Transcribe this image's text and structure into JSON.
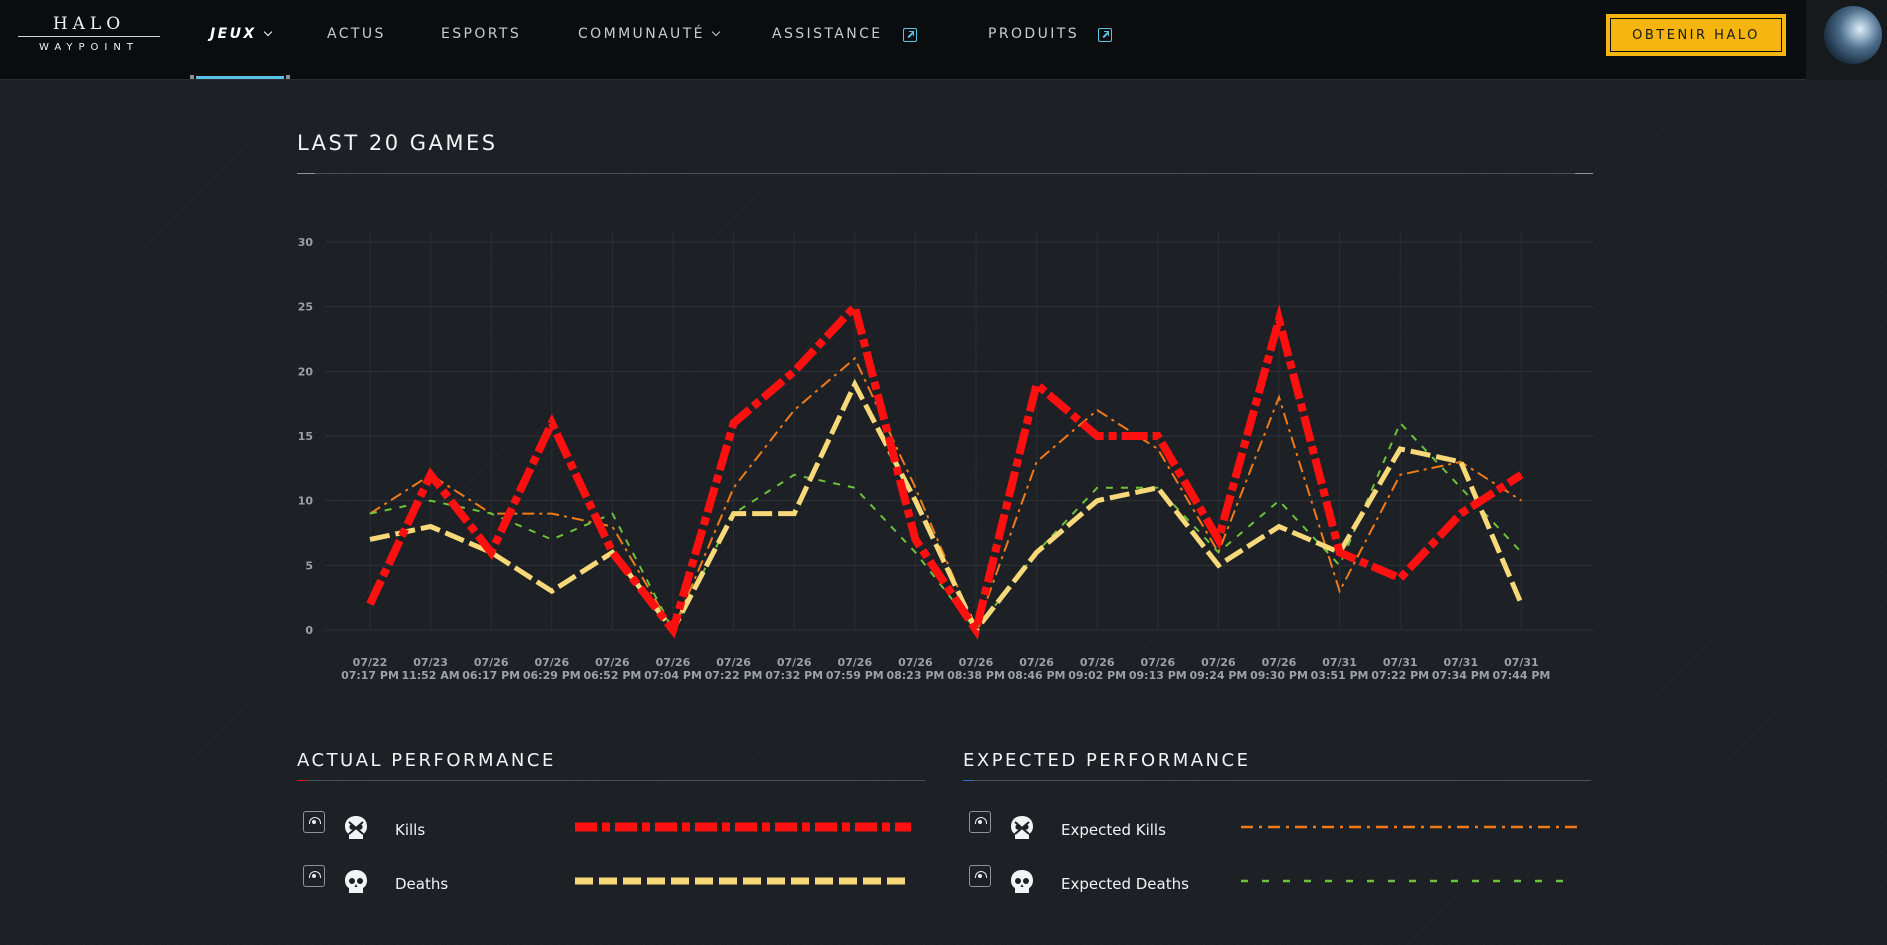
{
  "nav": {
    "logo_top": "HALO",
    "logo_bottom": "WAYPOINT",
    "items": [
      {
        "label": "JEUX",
        "dropdown": true,
        "active": true
      },
      {
        "label": "ACTUS"
      },
      {
        "label": "ESPORTS"
      },
      {
        "label": "COMMUNAUTÉ",
        "dropdown": true
      },
      {
        "label": "ASSISTANCE",
        "external": true
      },
      {
        "label": "PRODUITS",
        "external": true
      }
    ],
    "cta_label": "OBTENIR HALO",
    "accent": "#5bc2e7",
    "cta_color": "#f5b50e"
  },
  "main": {
    "chart_title": "LAST 20 GAMES"
  },
  "chart_data": {
    "type": "line",
    "title": "LAST 20 GAMES",
    "xlabel": "",
    "ylabel": "",
    "ylim": [
      0,
      30
    ],
    "yticks": [
      0,
      5,
      10,
      15,
      20,
      25,
      30
    ],
    "grid": true,
    "legend_placement": "bottom",
    "x": [
      [
        "07/22",
        "07:17 PM"
      ],
      [
        "07/23",
        "11:52 AM"
      ],
      [
        "07/26",
        "06:17 PM"
      ],
      [
        "07/26",
        "06:29 PM"
      ],
      [
        "07/26",
        "06:52 PM"
      ],
      [
        "07/26",
        "07:04 PM"
      ],
      [
        "07/26",
        "07:22 PM"
      ],
      [
        "07/26",
        "07:32 PM"
      ],
      [
        "07/26",
        "07:59 PM"
      ],
      [
        "07/26",
        "08:23 PM"
      ],
      [
        "07/26",
        "08:38 PM"
      ],
      [
        "07/26",
        "08:46 PM"
      ],
      [
        "07/26",
        "09:02 PM"
      ],
      [
        "07/26",
        "09:13 PM"
      ],
      [
        "07/26",
        "09:24 PM"
      ],
      [
        "07/26",
        "09:30 PM"
      ],
      [
        "07/31",
        "03:51 PM"
      ],
      [
        "07/31",
        "07:22 PM"
      ],
      [
        "07/31",
        "07:34 PM"
      ],
      [
        "07/31",
        "07:44 PM"
      ]
    ],
    "series": [
      {
        "name": "Kills",
        "color": "#ff1010",
        "values": [
          2,
          12,
          6,
          16,
          6,
          0,
          16,
          20,
          25,
          7,
          0,
          19,
          15,
          15,
          7,
          24,
          6,
          4,
          9,
          12
        ]
      },
      {
        "name": "Deaths",
        "color": "#f7d97a",
        "values": [
          7,
          8,
          6,
          3,
          6,
          0,
          9,
          9,
          19,
          10,
          0,
          6,
          10,
          11,
          5,
          8,
          6,
          14,
          13,
          2
        ]
      },
      {
        "name": "Expected Kills",
        "color": "#f07a1a",
        "values": [
          9,
          12,
          9,
          9,
          8,
          0,
          11,
          17,
          21,
          11,
          0,
          13,
          17,
          14,
          6,
          18,
          3,
          12,
          13,
          10
        ]
      },
      {
        "name": "Expected Deaths",
        "color": "#6cc23a",
        "values": [
          9,
          10,
          9,
          7,
          9,
          0,
          9,
          12,
          11,
          6,
          0,
          6,
          11,
          11,
          6,
          10,
          5,
          16,
          11,
          6
        ]
      }
    ]
  },
  "legend": {
    "actual": {
      "title": "ACTUAL PERFORMANCE",
      "accent": "#e0141e",
      "items": [
        {
          "label": "Kills",
          "icon": "skull-crossbones-icon"
        },
        {
          "label": "Deaths",
          "icon": "skull-icon"
        }
      ]
    },
    "expected": {
      "title": "EXPECTED PERFORMANCE",
      "accent": "#2f6fd6",
      "items": [
        {
          "label": "Expected Kills",
          "icon": "skull-crossbones-icon"
        },
        {
          "label": "Expected Deaths",
          "icon": "skull-icon"
        }
      ]
    }
  }
}
